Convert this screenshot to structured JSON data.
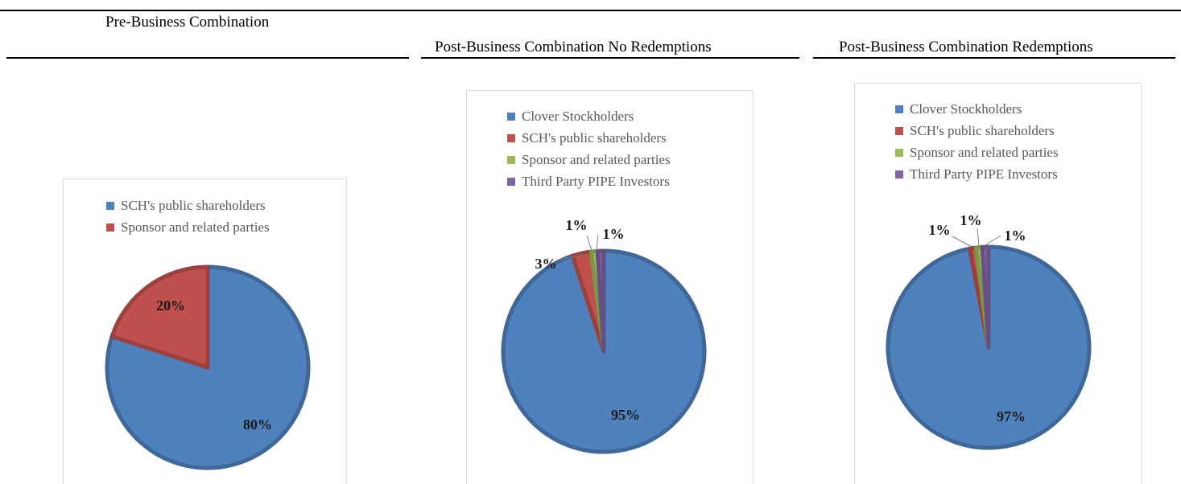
{
  "headers": {
    "pre": "Pre-Business Combination",
    "no_redemptions": "Post-Business Combination No Redemptions",
    "redemptions": "Post-Business Combination Redemptions"
  },
  "chart_data": [
    {
      "type": "pie",
      "title": "Pre-Business Combination",
      "categories": [
        "SCH's public shareholders",
        "Sponsor and related parties"
      ],
      "values": [
        80,
        20
      ],
      "labels": [
        "80%",
        "20%"
      ],
      "colors": [
        "#4f81bd",
        "#c0504d"
      ],
      "legend_position": "top"
    },
    {
      "type": "pie",
      "title": "Post-Business Combination No Redemptions",
      "categories": [
        "Clover Stockholders",
        "SCH's public shareholders",
        "Sponsor and related parties",
        "Third Party PIPE Investors"
      ],
      "values": [
        95,
        3,
        1,
        1
      ],
      "labels": [
        "95%",
        "3%",
        "1%",
        "1%"
      ],
      "colors": [
        "#4f81bd",
        "#c0504d",
        "#9bbb59",
        "#8064a2"
      ],
      "legend_position": "top"
    },
    {
      "type": "pie",
      "title": "Post-Business Combination Redemptions",
      "categories": [
        "Clover Stockholders",
        "SCH's public shareholders",
        "Sponsor and related parties",
        "Third Party PIPE Investors"
      ],
      "values": [
        97,
        1,
        1,
        1
      ],
      "labels": [
        "97%",
        "1%",
        "1%",
        "1%"
      ],
      "colors": [
        "#4f81bd",
        "#c0504d",
        "#9bbb59",
        "#8064a2"
      ],
      "legend_position": "top"
    }
  ]
}
